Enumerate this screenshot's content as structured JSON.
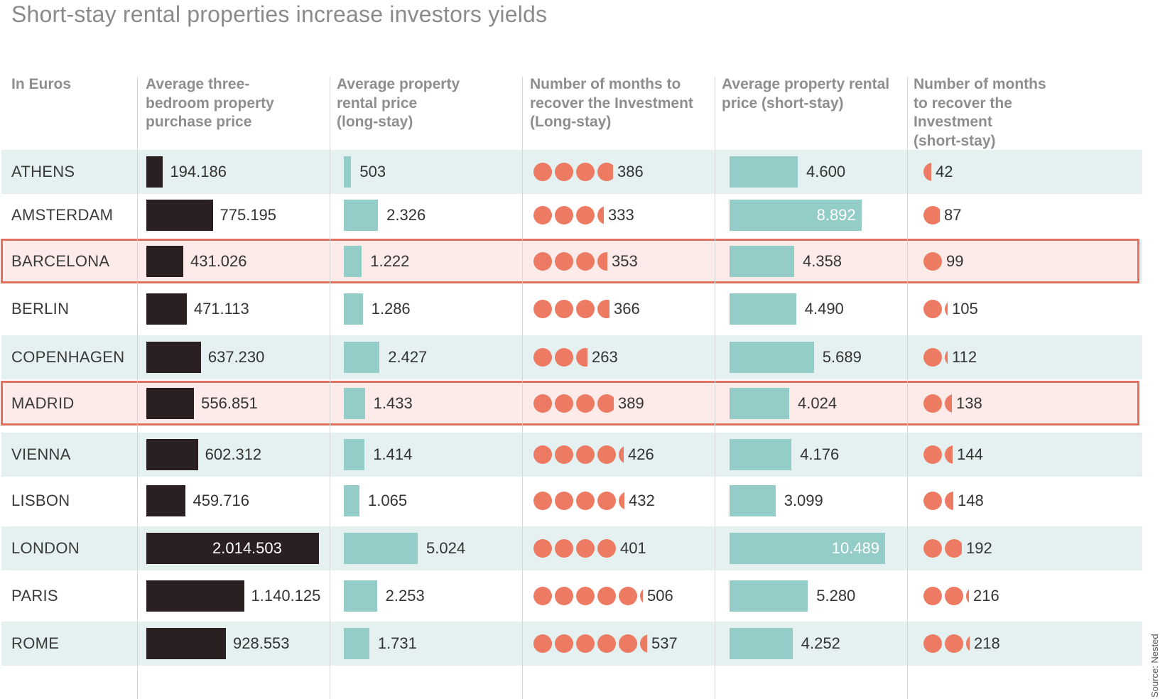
{
  "title": "Short-stay rental properties increase investors yields",
  "source": "Source: Nested",
  "headers": [
    [
      "In Euros"
    ],
    [
      "Average three-",
      "bedroom property",
      "purchase price"
    ],
    [
      "Average property",
      "rental price",
      "(long-stay)"
    ],
    [
      "Number of months to",
      "recover the Investment",
      "(Long-stay)"
    ],
    [
      "Average property rental",
      "price (short-stay)"
    ],
    [
      "Number of months",
      "to recover the",
      "Investment",
      "(short-stay)"
    ]
  ],
  "colors": {
    "purchase_bar": "#2a2021",
    "rental_bar": "#94cdc8",
    "months_dot": "#ed7a62",
    "band": "#e4f1f0",
    "highlight_fill": "#fdebea",
    "highlight_border": "#e4715f"
  },
  "highlighted": [
    "BARCELONA",
    "MADRID"
  ],
  "chart_data": {
    "type": "table",
    "title": "Short-stay rental properties increase investors yields",
    "unit": "In Euros",
    "rows": [
      {
        "city": "ATHENS",
        "purchase": 194186,
        "purchase_label": "194.186",
        "long_rent": 503,
        "long_rent_label": "503",
        "long_months": 386,
        "long_months_label": "386",
        "short_rent": 4600,
        "short_rent_label": "4.600",
        "short_months": 42,
        "short_months_label": "42"
      },
      {
        "city": "AMSTERDAM",
        "purchase": 775195,
        "purchase_label": "775.195",
        "long_rent": 2326,
        "long_rent_label": "2.326",
        "long_months": 333,
        "long_months_label": "333",
        "short_rent": 8892,
        "short_rent_label": "8.892",
        "short_months": 87,
        "short_months_label": "87"
      },
      {
        "city": "BARCELONA",
        "purchase": 431026,
        "purchase_label": "431.026",
        "long_rent": 1222,
        "long_rent_label": "1.222",
        "long_months": 353,
        "long_months_label": "353",
        "short_rent": 4358,
        "short_rent_label": "4.358",
        "short_months": 99,
        "short_months_label": "99"
      },
      {
        "city": "BERLIN",
        "purchase": 471113,
        "purchase_label": "471.113",
        "long_rent": 1286,
        "long_rent_label": "1.286",
        "long_months": 366,
        "long_months_label": "366",
        "short_rent": 4490,
        "short_rent_label": "4.490",
        "short_months": 105,
        "short_months_label": "105"
      },
      {
        "city": "COPENHAGEN",
        "purchase": 637230,
        "purchase_label": "637.230",
        "long_rent": 2427,
        "long_rent_label": "2.427",
        "long_months": 263,
        "long_months_label": "263",
        "short_rent": 5689,
        "short_rent_label": "5.689",
        "short_months": 112,
        "short_months_label": "112"
      },
      {
        "city": "MADRID",
        "purchase": 556851,
        "purchase_label": "556.851",
        "long_rent": 1433,
        "long_rent_label": "1.433",
        "long_months": 389,
        "long_months_label": "389",
        "short_rent": 4024,
        "short_rent_label": "4.024",
        "short_months": 138,
        "short_months_label": "138"
      },
      {
        "city": "VIENNA",
        "purchase": 602312,
        "purchase_label": "602.312",
        "long_rent": 1414,
        "long_rent_label": "1.414",
        "long_months": 426,
        "long_months_label": "426",
        "short_rent": 4176,
        "short_rent_label": "4.176",
        "short_months": 144,
        "short_months_label": "144"
      },
      {
        "city": "LISBON",
        "purchase": 459716,
        "purchase_label": "459.716",
        "long_rent": 1065,
        "long_rent_label": "1.065",
        "long_months": 432,
        "long_months_label": "432",
        "short_rent": 3099,
        "short_rent_label": "3.099",
        "short_months": 148,
        "short_months_label": "148"
      },
      {
        "city": "LONDON",
        "purchase": 2014503,
        "purchase_label": "2.014.503",
        "long_rent": 5024,
        "long_rent_label": "5.024",
        "long_months": 401,
        "long_months_label": "401",
        "short_rent": 10489,
        "short_rent_label": "10.489",
        "short_months": 192,
        "short_months_label": "192"
      },
      {
        "city": "PARIS",
        "purchase": 1140125,
        "purchase_label": "1.140.125",
        "long_rent": 2253,
        "long_rent_label": "2.253",
        "long_months": 506,
        "long_months_label": "506",
        "short_rent": 5280,
        "short_rent_label": "5.280",
        "short_months": 216,
        "short_months_label": "216"
      },
      {
        "city": "ROME",
        "purchase": 928553,
        "purchase_label": "928.553",
        "long_rent": 1731,
        "long_rent_label": "1.731",
        "long_months": 537,
        "long_months_label": "537",
        "short_rent": 4252,
        "short_rent_label": "4.252",
        "short_months": 218,
        "short_months_label": "218"
      }
    ]
  }
}
